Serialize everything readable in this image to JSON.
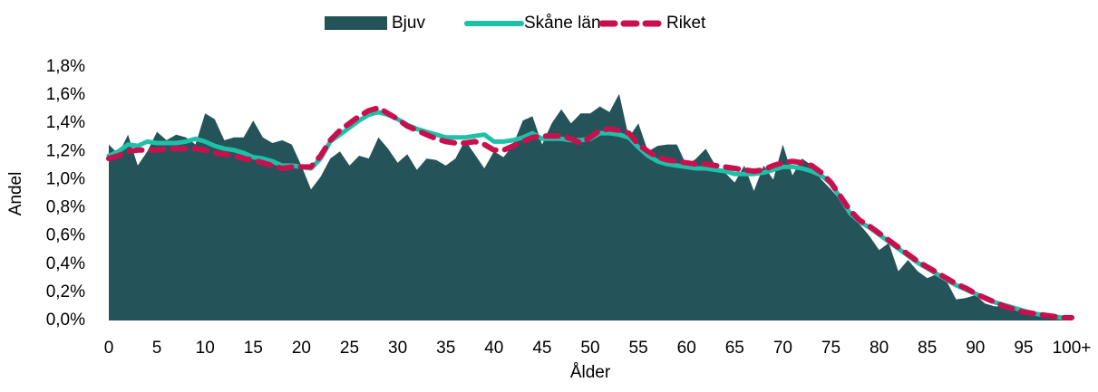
{
  "chart_data": {
    "type": "line",
    "xlabel": "Ålder",
    "ylabel": "Andel",
    "categories": [
      "0",
      null,
      null,
      null,
      null,
      "5",
      null,
      null,
      null,
      null,
      "10",
      null,
      null,
      null,
      null,
      "15",
      null,
      null,
      null,
      null,
      "20",
      null,
      null,
      null,
      null,
      "25",
      null,
      null,
      null,
      null,
      "30",
      null,
      null,
      null,
      null,
      "35",
      null,
      null,
      null,
      null,
      "40",
      null,
      null,
      null,
      null,
      "45",
      null,
      null,
      null,
      null,
      "50",
      null,
      null,
      null,
      null,
      "55",
      null,
      null,
      null,
      null,
      "60",
      null,
      null,
      null,
      null,
      "65",
      null,
      null,
      null,
      null,
      "70",
      null,
      null,
      null,
      null,
      "75",
      null,
      null,
      null,
      null,
      "80",
      null,
      null,
      null,
      null,
      "85",
      null,
      null,
      null,
      null,
      "90",
      null,
      null,
      null,
      null,
      "95",
      null,
      null,
      null,
      null,
      "100+"
    ],
    "ylim": [
      0,
      1.8
    ],
    "yticks": [
      {
        "value": 0,
        "label": "0,0%"
      },
      {
        "value": 0.2,
        "label": "0,2%"
      },
      {
        "value": 0.4,
        "label": "0,4%"
      },
      {
        "value": 0.6,
        "label": "0,6%"
      },
      {
        "value": 0.8,
        "label": "0,8%"
      },
      {
        "value": 1.0,
        "label": "1,0%"
      },
      {
        "value": 1.2,
        "label": "1,2%"
      },
      {
        "value": 1.4,
        "label": "1,4%"
      },
      {
        "value": 1.6,
        "label": "1,6%"
      },
      {
        "value": 1.8,
        "label": "1,8%"
      }
    ],
    "grid": false,
    "legend": "top",
    "series": [
      {
        "name": "Bjuv",
        "style": "area",
        "color": "#245459",
        "values": [
          1.25,
          1.18,
          1.32,
          1.1,
          1.2,
          1.34,
          1.28,
          1.32,
          1.3,
          1.25,
          1.47,
          1.43,
          1.28,
          1.3,
          1.3,
          1.42,
          1.3,
          1.26,
          1.28,
          1.25,
          1.1,
          0.93,
          1.02,
          1.15,
          1.2,
          1.1,
          1.17,
          1.15,
          1.3,
          1.22,
          1.12,
          1.18,
          1.07,
          1.15,
          1.14,
          1.1,
          1.15,
          1.28,
          1.18,
          1.08,
          1.2,
          1.16,
          1.25,
          1.42,
          1.45,
          1.25,
          1.4,
          1.5,
          1.4,
          1.47,
          1.47,
          1.52,
          1.48,
          1.61,
          1.3,
          1.4,
          1.2,
          1.24,
          1.25,
          1.25,
          1.1,
          1.15,
          1.22,
          1.1,
          1.05,
          0.98,
          1.1,
          0.92,
          1.1,
          1.0,
          1.25,
          1.03,
          1.15,
          1.1,
          1.0,
          0.93,
          0.85,
          0.75,
          0.68,
          0.6,
          0.5,
          0.55,
          0.35,
          0.43,
          0.35,
          0.3,
          0.33,
          0.28,
          0.15,
          0.16,
          0.18,
          0.12,
          0.1,
          0.1,
          0.08,
          0.06,
          0.05,
          0.03,
          0.02,
          0.01,
          0.01
        ]
      },
      {
        "name": "Skåne län",
        "style": "solid",
        "color": "#1fc0a8",
        "values": [
          1.17,
          1.2,
          1.25,
          1.24,
          1.27,
          1.26,
          1.26,
          1.26,
          1.27,
          1.29,
          1.27,
          1.24,
          1.22,
          1.21,
          1.19,
          1.16,
          1.15,
          1.13,
          1.1,
          1.1,
          1.09,
          1.08,
          1.15,
          1.27,
          1.32,
          1.37,
          1.42,
          1.46,
          1.48,
          1.46,
          1.43,
          1.39,
          1.36,
          1.34,
          1.32,
          1.3,
          1.3,
          1.3,
          1.31,
          1.32,
          1.27,
          1.27,
          1.28,
          1.3,
          1.33,
          1.29,
          1.29,
          1.29,
          1.28,
          1.28,
          1.29,
          1.33,
          1.33,
          1.32,
          1.3,
          1.23,
          1.17,
          1.13,
          1.11,
          1.1,
          1.09,
          1.08,
          1.08,
          1.07,
          1.06,
          1.04,
          1.04,
          1.04,
          1.05,
          1.07,
          1.09,
          1.09,
          1.08,
          1.06,
          1.03,
          0.97,
          0.87,
          0.76,
          0.7,
          0.66,
          0.61,
          0.56,
          0.51,
          0.46,
          0.41,
          0.37,
          0.33,
          0.29,
          0.25,
          0.22,
          0.19,
          0.16,
          0.13,
          0.11,
          0.09,
          0.07,
          0.05,
          0.04,
          0.03,
          0.02,
          0.02
        ]
      },
      {
        "name": "Riket",
        "style": "dashed",
        "color": "#c8104e",
        "values": [
          1.15,
          1.17,
          1.2,
          1.21,
          1.21,
          1.21,
          1.22,
          1.22,
          1.22,
          1.22,
          1.21,
          1.19,
          1.18,
          1.17,
          1.15,
          1.14,
          1.12,
          1.1,
          1.08,
          1.09,
          1.09,
          1.09,
          1.17,
          1.28,
          1.35,
          1.4,
          1.45,
          1.49,
          1.51,
          1.47,
          1.43,
          1.38,
          1.35,
          1.32,
          1.29,
          1.27,
          1.26,
          1.26,
          1.27,
          1.25,
          1.21,
          1.21,
          1.24,
          1.27,
          1.3,
          1.31,
          1.31,
          1.31,
          1.29,
          1.26,
          1.3,
          1.35,
          1.36,
          1.35,
          1.33,
          1.25,
          1.2,
          1.16,
          1.14,
          1.13,
          1.12,
          1.11,
          1.11,
          1.1,
          1.09,
          1.08,
          1.07,
          1.06,
          1.07,
          1.1,
          1.12,
          1.13,
          1.12,
          1.1,
          1.05,
          0.98,
          0.88,
          0.78,
          0.71,
          0.67,
          0.62,
          0.57,
          0.52,
          0.47,
          0.42,
          0.38,
          0.34,
          0.3,
          0.26,
          0.23,
          0.19,
          0.16,
          0.13,
          0.1,
          0.08,
          0.06,
          0.05,
          0.04,
          0.03,
          0.02,
          0.02
        ]
      }
    ]
  }
}
